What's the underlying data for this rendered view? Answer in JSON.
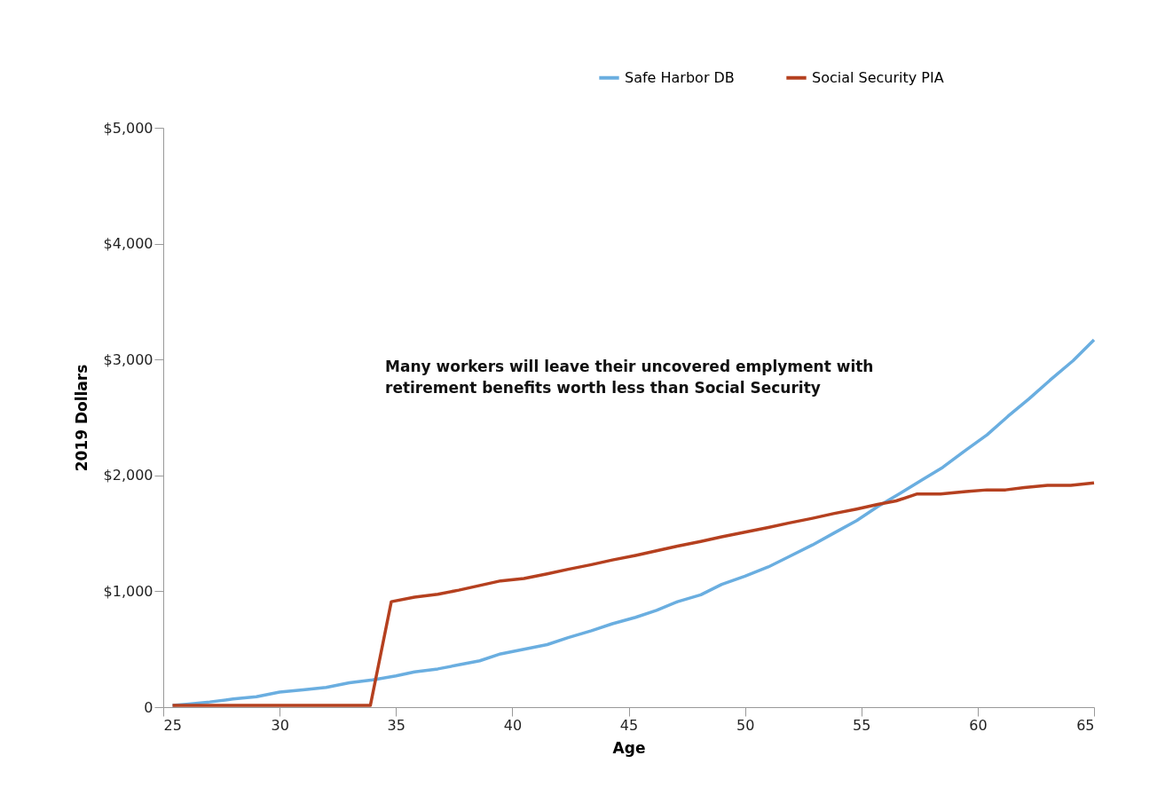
{
  "chart_data": {
    "type": "line",
    "xlabel": "Age",
    "ylabel": "2019 Dollars",
    "xlim": [
      25,
      65
    ],
    "xticks": [
      25,
      30,
      35,
      40,
      45,
      50,
      55,
      60,
      65
    ],
    "ylim": [
      0,
      5000
    ],
    "yticks": [
      0,
      {
        "value": 1000,
        "label": "$1,000"
      },
      {
        "value": 2000,
        "label": "$2,000"
      },
      {
        "value": 3000,
        "label": "$3,000"
      },
      {
        "value": 4000,
        "label": "$4,000"
      },
      {
        "value": 5000,
        "label": "$5,000"
      }
    ],
    "grid": false,
    "legend": "top right",
    "marker": "none",
    "line_style": "solid",
    "annotations": [
      "Many workers will leave their uncovered emplyment with retirement benefits worth less than Social Security"
    ],
    "series": [
      {
        "name": "Safe Harbor DB",
        "color": "#6aaee0",
        "x": [
          25.4,
          26,
          27,
          28,
          29,
          30,
          31,
          32,
          33,
          34,
          35,
          35.8,
          36.8,
          37.7,
          38.6,
          39.5,
          40.5,
          41.5,
          42.4,
          43.4,
          44.3,
          45.3,
          46.2,
          47.1,
          48.1,
          49,
          50,
          51,
          51.9,
          52.9,
          53.8,
          54.8,
          55.7,
          56.7,
          57.6,
          58.5,
          59.5,
          60.4,
          61.3,
          62.2,
          63.1,
          64.1,
          65
        ],
        "values": [
          15,
          25,
          45,
          70,
          90,
          130,
          150,
          170,
          210,
          235,
          270,
          305,
          330,
          365,
          400,
          460,
          500,
          540,
          600,
          660,
          720,
          775,
          835,
          910,
          970,
          1060,
          1130,
          1210,
          1300,
          1400,
          1500,
          1610,
          1730,
          1850,
          1960,
          2070,
          2220,
          2350,
          2510,
          2660,
          2820,
          2990,
          3170
        ]
      },
      {
        "name": "Social Security PIA",
        "color": "#b5401f",
        "x": [
          25.4,
          33.9,
          34.8,
          35.8,
          36.8,
          37.7,
          38.6,
          39.5,
          40.5,
          41.5,
          42.4,
          43.4,
          44.3,
          45.3,
          46.2,
          47.1,
          48.1,
          49,
          50,
          51,
          51.9,
          52.9,
          53.8,
          54.8,
          55.7,
          56.5,
          57.4,
          58.4,
          59.5,
          60.4,
          61.2,
          62,
          63,
          64,
          65
        ],
        "values": [
          15,
          15,
          910,
          950,
          975,
          1010,
          1050,
          1090,
          1110,
          1150,
          1190,
          1230,
          1270,
          1310,
          1350,
          1390,
          1430,
          1470,
          1510,
          1550,
          1590,
          1630,
          1670,
          1710,
          1750,
          1780,
          1840,
          1840,
          1860,
          1875,
          1875,
          1895,
          1915,
          1915,
          1935
        ]
      }
    ]
  }
}
